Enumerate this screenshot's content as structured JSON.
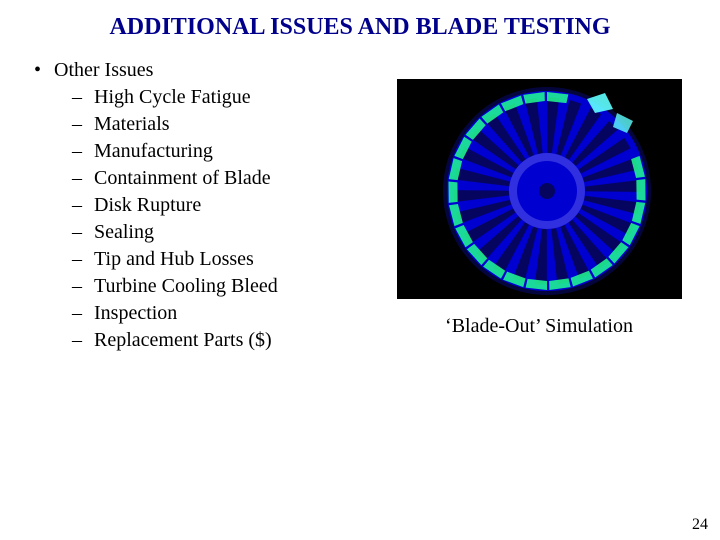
{
  "title": {
    "text": "ADDITIONAL ISSUES AND BLADE TESTING",
    "color": "#00008b",
    "fontsize": 24
  },
  "list": {
    "fontsize": 20,
    "textcolor": "#000000",
    "level1": [
      {
        "label": "Other Issues"
      }
    ],
    "level2": [
      {
        "label": "High Cycle Fatigue"
      },
      {
        "label": "Materials"
      },
      {
        "label": "Manufacturing"
      },
      {
        "label": "Containment of Blade"
      },
      {
        "label": "Disk Rupture"
      },
      {
        "label": "Sealing"
      },
      {
        "label": "Tip and Hub Losses"
      },
      {
        "label": "Turbine Cooling Bleed"
      },
      {
        "label": "Inspection"
      },
      {
        "label": "Replacement Parts ($)"
      }
    ]
  },
  "figure": {
    "caption": "‘Blade-Out’ Simulation",
    "caption_fontsize": 20,
    "caption_color": "#000000",
    "background": "#000000",
    "disc_color": "#0000d0",
    "halo_color": "#0a0a8a",
    "blade_color": "#050560",
    "highlight_color": "#20ff90",
    "highlight_color2": "#60ffff",
    "hub_color": "#3030e0",
    "num_blades": 26,
    "outer_radius": 100,
    "inner_radius": 38
  },
  "page_number": "24",
  "page_number_color": "#000000"
}
